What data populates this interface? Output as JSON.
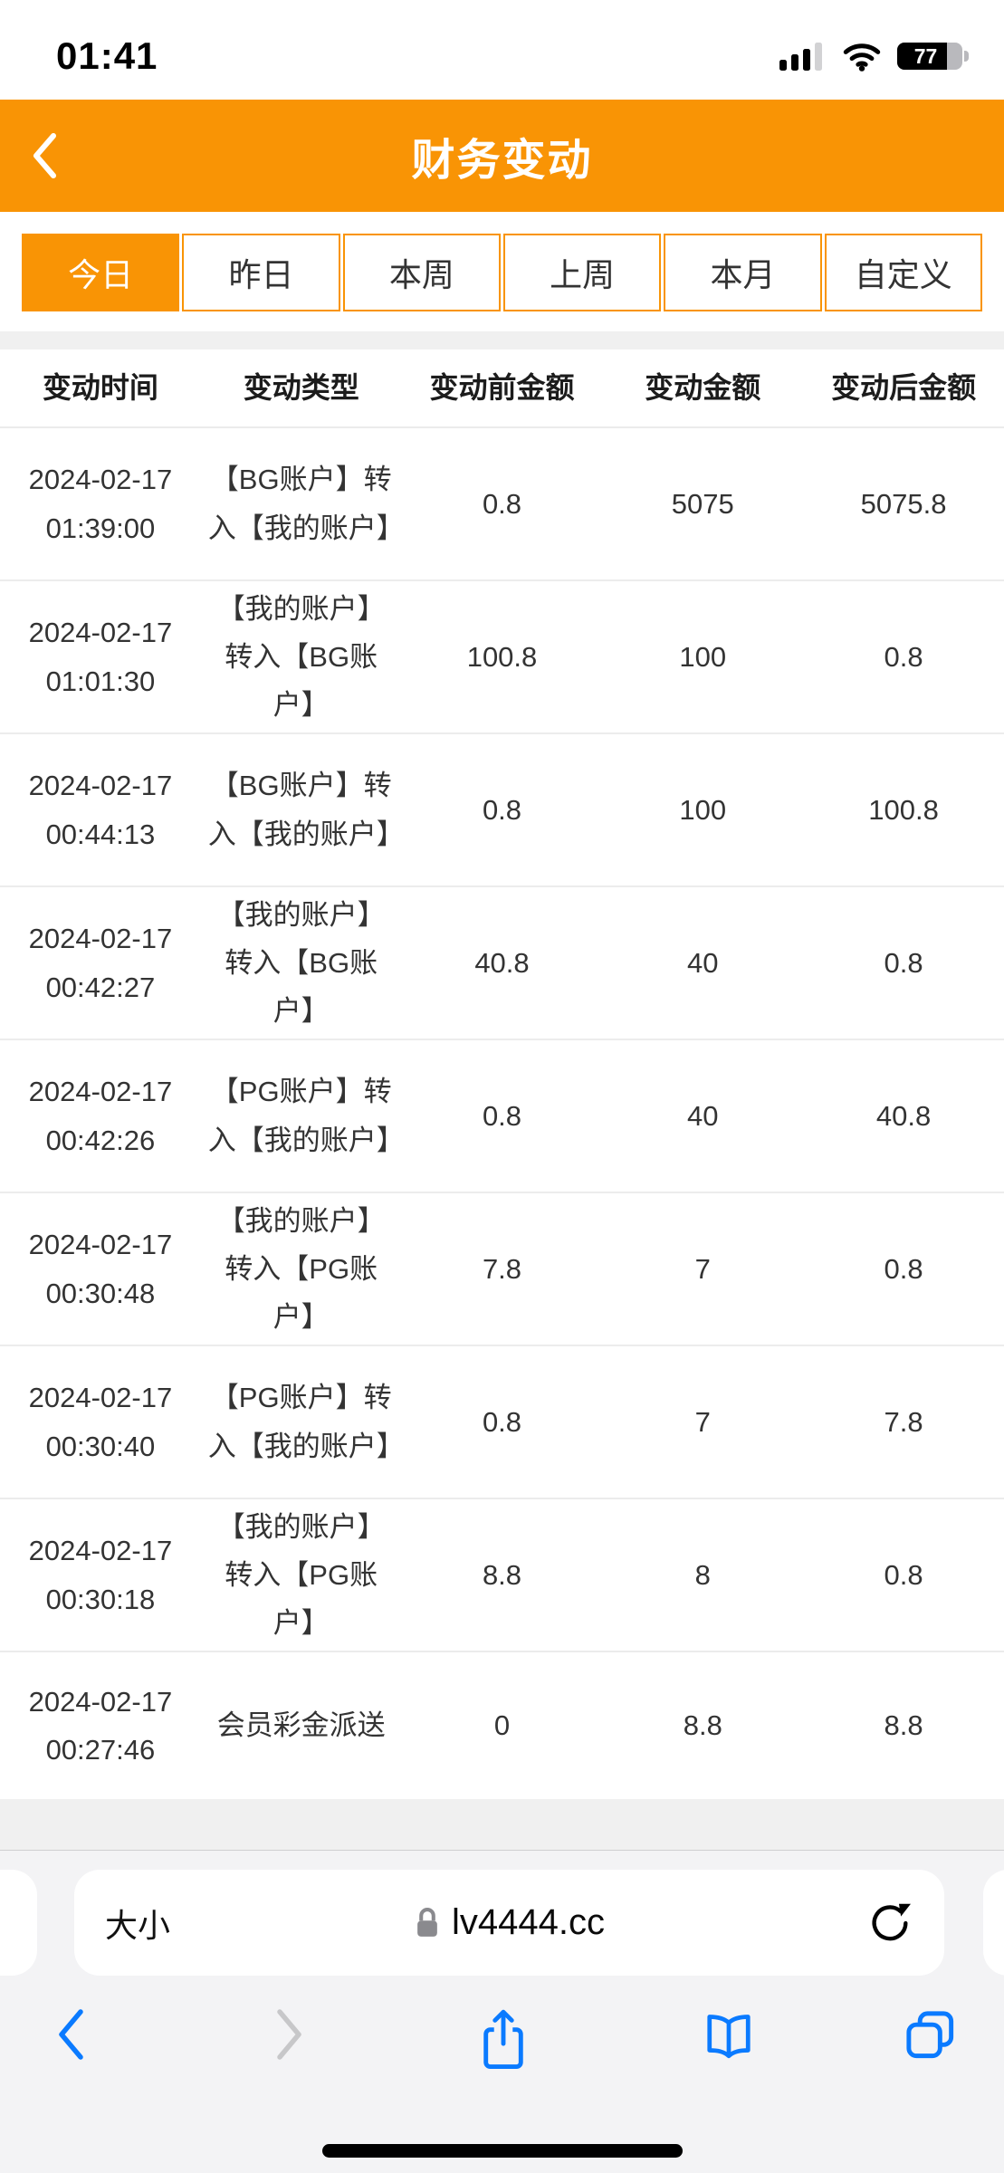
{
  "status_bar": {
    "time": "01:41",
    "battery_percent": "77"
  },
  "header": {
    "title": "财务变动"
  },
  "filter_tabs": [
    {
      "label": "今日",
      "selected": true
    },
    {
      "label": "昨日",
      "selected": false
    },
    {
      "label": "本周",
      "selected": false
    },
    {
      "label": "上周",
      "selected": false
    },
    {
      "label": "本月",
      "selected": false
    },
    {
      "label": "自定义",
      "selected": false
    }
  ],
  "table": {
    "headers": [
      "变动时间",
      "变动类型",
      "变动前金额",
      "变动金额",
      "变动后金额"
    ],
    "rows": [
      {
        "date": "2024-02-17",
        "time": "01:39:00",
        "type": "【BG账户】转入【我的账户】",
        "before": "0.8",
        "amount": "5075",
        "after": "5075.8"
      },
      {
        "date": "2024-02-17",
        "time": "01:01:30",
        "type": "【我的账户】转入【BG账户】",
        "before": "100.8",
        "amount": "100",
        "after": "0.8"
      },
      {
        "date": "2024-02-17",
        "time": "00:44:13",
        "type": "【BG账户】转入【我的账户】",
        "before": "0.8",
        "amount": "100",
        "after": "100.8"
      },
      {
        "date": "2024-02-17",
        "time": "00:42:27",
        "type": "【我的账户】转入【BG账户】",
        "before": "40.8",
        "amount": "40",
        "after": "0.8"
      },
      {
        "date": "2024-02-17",
        "time": "00:42:26",
        "type": "【PG账户】转入【我的账户】",
        "before": "0.8",
        "amount": "40",
        "after": "40.8"
      },
      {
        "date": "2024-02-17",
        "time": "00:30:48",
        "type": "【我的账户】转入【PG账户】",
        "before": "7.8",
        "amount": "7",
        "after": "0.8"
      },
      {
        "date": "2024-02-17",
        "time": "00:30:40",
        "type": "【PG账户】转入【我的账户】",
        "before": "0.8",
        "amount": "7",
        "after": "7.8"
      },
      {
        "date": "2024-02-17",
        "time": "00:30:18",
        "type": "【我的账户】转入【PG账户】",
        "before": "8.8",
        "amount": "8",
        "after": "0.8"
      },
      {
        "date": "2024-02-17",
        "time": "00:27:46",
        "type": "会员彩金派送",
        "before": "0",
        "amount": "8.8",
        "after": "8.8"
      }
    ]
  },
  "browser": {
    "text_size_label": "大小",
    "domain": "lv4444.cc"
  },
  "colors": {
    "accent_orange": "#f99405",
    "ios_blue": "#0a7aff",
    "disabled_gray": "#c7c7c9"
  }
}
